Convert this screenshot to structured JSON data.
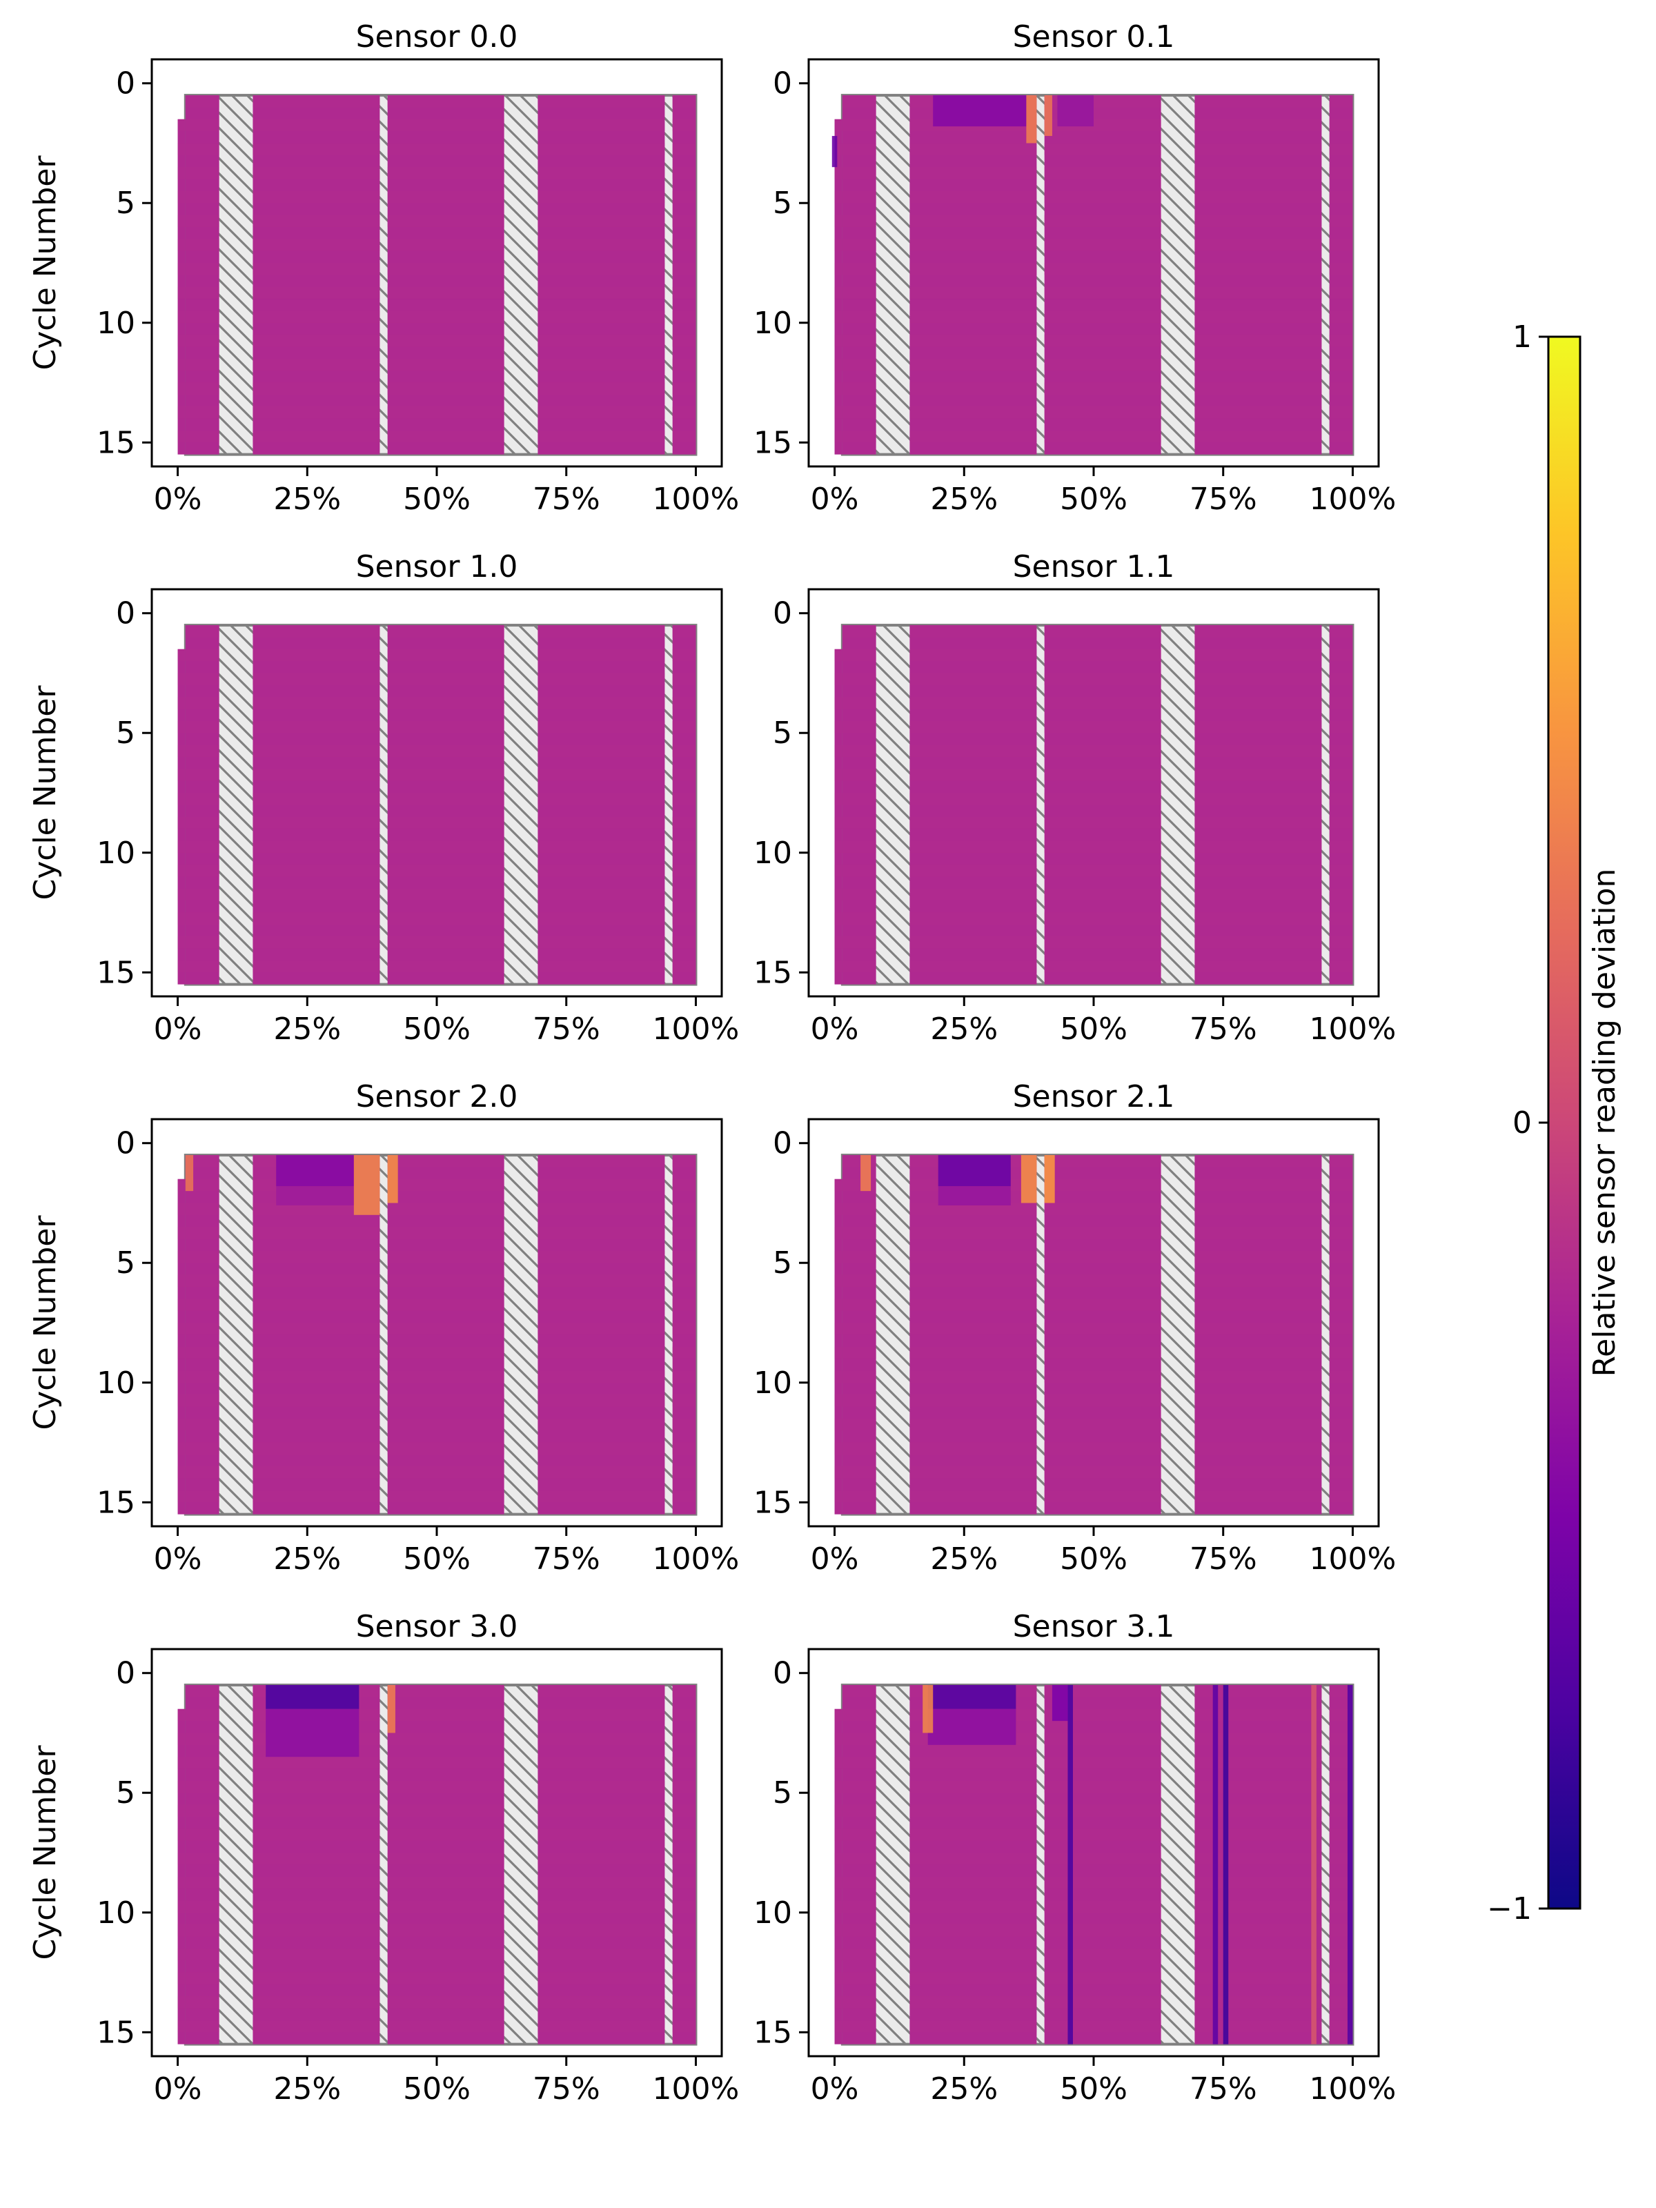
{
  "chart_data": {
    "type": "heatmap",
    "colormap": "plasma",
    "layout": "4x2 grid of heatmap panels sharing one colorbar",
    "x_ticks": [
      "0%",
      "25%",
      "50%",
      "75%",
      "100%"
    ],
    "x_tick_values": [
      0,
      25,
      50,
      75,
      100
    ],
    "xlim": [
      -5,
      105
    ],
    "y_ticks": [
      "0",
      "5",
      "10",
      "15"
    ],
    "y_tick_values": [
      0,
      5,
      10,
      15
    ],
    "ylim": [
      16,
      -1
    ],
    "ylabel": "Cycle Number",
    "base_value": -0.2,
    "colorbar": {
      "label": "Relative sensor reading deviation",
      "ticks": [
        "1",
        "0",
        "−1"
      ],
      "tick_values": [
        1,
        0,
        -1
      ],
      "range": [
        -1,
        1
      ]
    },
    "hatch_color": "#808080",
    "hatch_fill": "#ebebeb",
    "masked_x_bands": [
      {
        "x0": 8,
        "x1": 14.5
      },
      {
        "x0": 39,
        "x1": 40.5
      },
      {
        "x0": 63,
        "x1": 69.5
      },
      {
        "x0": 94,
        "x1": 95.5
      }
    ],
    "data_columns": [
      {
        "x0": 0,
        "x1": 1.5,
        "y0": 1.5,
        "y1": 15.5
      },
      {
        "x0": 1.5,
        "x1": 8,
        "y0": 0.5,
        "y1": 15.5
      },
      {
        "x0": 14.5,
        "x1": 39,
        "y0": 0.5,
        "y1": 15.5
      },
      {
        "x0": 40.5,
        "x1": 63,
        "y0": 0.5,
        "y1": 15.5
      },
      {
        "x0": 69.5,
        "x1": 94,
        "y0": 0.5,
        "y1": 15.5
      },
      {
        "x0": 95.5,
        "x1": 100,
        "y0": 0.5,
        "y1": 15.5
      }
    ],
    "panels": [
      {
        "title": "Sensor 0.0",
        "anomalies": []
      },
      {
        "title": "Sensor 0.1",
        "anomalies": [
          {
            "x0": 19,
            "x1": 37,
            "y0": 0.5,
            "y1": 1.8,
            "value": -0.45
          },
          {
            "x0": 43,
            "x1": 50,
            "y0": 0.5,
            "y1": 1.8,
            "value": -0.35
          },
          {
            "x0": 37,
            "x1": 39,
            "y0": 0.5,
            "y1": 2.5,
            "value": 0.35
          },
          {
            "x0": 40.5,
            "x1": 42,
            "y0": 0.5,
            "y1": 2.2,
            "value": 0.3
          },
          {
            "x0": -0.5,
            "x1": 0.5,
            "y0": 2.2,
            "y1": 3.5,
            "value": -0.6
          }
        ]
      },
      {
        "title": "Sensor 1.0",
        "anomalies": []
      },
      {
        "title": "Sensor 1.1",
        "anomalies": []
      },
      {
        "title": "Sensor 2.0",
        "anomalies": [
          {
            "x0": 19,
            "x1": 34,
            "y0": 0.5,
            "y1": 1.8,
            "value": -0.45
          },
          {
            "x0": 19,
            "x1": 34,
            "y0": 1.8,
            "y1": 2.6,
            "value": -0.3
          },
          {
            "x0": 34,
            "x1": 39,
            "y0": 0.5,
            "y1": 3.0,
            "value": 0.4
          },
          {
            "x0": 40.5,
            "x1": 42.5,
            "y0": 0.5,
            "y1": 2.5,
            "value": 0.45
          },
          {
            "x0": 1.5,
            "x1": 3,
            "y0": 0.5,
            "y1": 2.0,
            "value": 0.3
          }
        ]
      },
      {
        "title": "Sensor 2.1",
        "anomalies": [
          {
            "x0": 20,
            "x1": 34,
            "y0": 0.5,
            "y1": 1.8,
            "value": -0.6
          },
          {
            "x0": 20,
            "x1": 34,
            "y0": 1.8,
            "y1": 2.6,
            "value": -0.35
          },
          {
            "x0": 36,
            "x1": 39,
            "y0": 0.5,
            "y1": 2.5,
            "value": 0.45
          },
          {
            "x0": 40.5,
            "x1": 42.5,
            "y0": 0.5,
            "y1": 2.5,
            "value": 0.5
          },
          {
            "x0": 5,
            "x1": 7,
            "y0": 0.5,
            "y1": 2.0,
            "value": 0.35
          }
        ]
      },
      {
        "title": "Sensor 3.0",
        "anomalies": [
          {
            "x0": 17,
            "x1": 35,
            "y0": 0.5,
            "y1": 1.5,
            "value": -0.75
          },
          {
            "x0": 17,
            "x1": 35,
            "y0": 1.5,
            "y1": 3.5,
            "value": -0.4
          },
          {
            "x0": 40.5,
            "x1": 42,
            "y0": 0.5,
            "y1": 2.5,
            "value": 0.35
          }
        ]
      },
      {
        "title": "Sensor 3.1",
        "anomalies": [
          {
            "x0": 18,
            "x1": 35,
            "y0": 0.5,
            "y1": 1.5,
            "value": -0.7
          },
          {
            "x0": 18,
            "x1": 35,
            "y0": 1.5,
            "y1": 3.0,
            "value": -0.4
          },
          {
            "x0": 17,
            "x1": 19,
            "y0": 0.5,
            "y1": 2.5,
            "value": 0.4
          },
          {
            "x0": 45,
            "x1": 46,
            "y0": 0.5,
            "y1": 15.5,
            "value": -0.75
          },
          {
            "x0": 42,
            "x1": 45,
            "y0": 0.5,
            "y1": 2.0,
            "value": -0.5
          },
          {
            "x0": 73,
            "x1": 74,
            "y0": 0.5,
            "y1": 15.5,
            "value": -0.65
          },
          {
            "x0": 75,
            "x1": 76,
            "y0": 0.5,
            "y1": 15.5,
            "value": -0.8
          },
          {
            "x0": 99,
            "x1": 100,
            "y0": 0.5,
            "y1": 15.5,
            "value": -0.7
          },
          {
            "x0": 92,
            "x1": 93,
            "y0": 0.5,
            "y1": 15.5,
            "value": 0.1
          }
        ]
      }
    ]
  }
}
